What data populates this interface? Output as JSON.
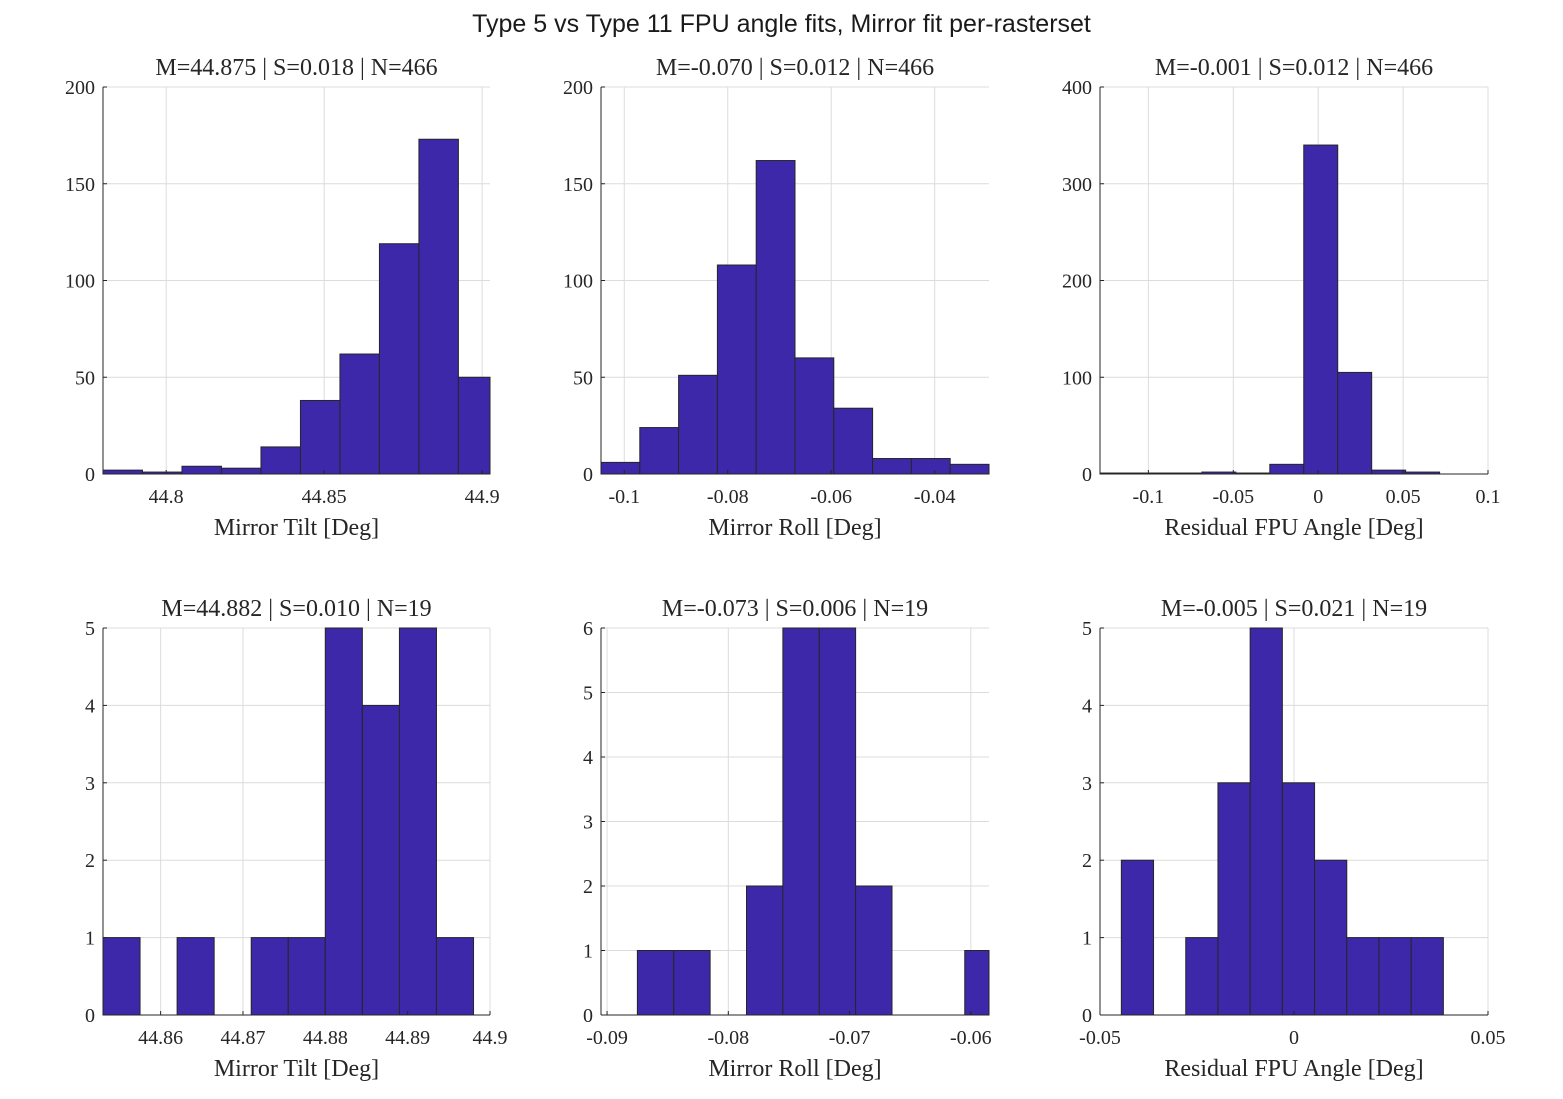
{
  "suptitle": "Type 5 vs Type 11 FPU angle fits, Mirror fit per-rasterset",
  "style": {
    "bar_fill": "#3c28a8",
    "bar_edge": "#262626",
    "grid": "#dcdcdc",
    "axis": "#262626"
  },
  "chart_data": [
    {
      "type": "bar",
      "title": "M=44.875 | S=0.018 | N=466",
      "xlabel": "Mirror Tilt [Deg]",
      "xlim": [
        44.78,
        44.9025
      ],
      "ylim": [
        0,
        200
      ],
      "xticks": [
        44.8,
        44.85,
        44.9
      ],
      "xtick_labels": [
        "44.8",
        "44.85",
        "44.9"
      ],
      "yticks": [
        0,
        50,
        100,
        150,
        200
      ],
      "ytick_labels": [
        "0",
        "50",
        "100",
        "150",
        "200"
      ],
      "bin_edges": [
        44.78,
        44.7925,
        44.805,
        44.8175,
        44.83,
        44.8425,
        44.855,
        44.8675,
        44.88,
        44.8925,
        44.905
      ],
      "values": [
        2,
        1,
        4,
        3,
        14,
        38,
        62,
        119,
        173,
        50
      ],
      "grid": true
    },
    {
      "type": "bar",
      "title": "M=-0.070 | S=0.012 | N=466",
      "xlabel": "Mirror Roll [Deg]",
      "xlim": [
        -0.1045,
        -0.0295
      ],
      "ylim": [
        0,
        200
      ],
      "xticks": [
        -0.1,
        -0.08,
        -0.06,
        -0.04
      ],
      "xtick_labels": [
        "-0.1",
        "-0.08",
        "-0.06",
        "-0.04"
      ],
      "yticks": [
        0,
        50,
        100,
        150,
        200
      ],
      "ytick_labels": [
        "0",
        "50",
        "100",
        "150",
        "200"
      ],
      "bin_edges": [
        -0.1045,
        -0.097,
        -0.0895,
        -0.082,
        -0.0745,
        -0.067,
        -0.0595,
        -0.052,
        -0.0445,
        -0.037,
        -0.0295
      ],
      "values": [
        6,
        24,
        51,
        108,
        162,
        60,
        34,
        8,
        8,
        5
      ],
      "grid": true
    },
    {
      "type": "bar",
      "title": "M=-0.001 | S=0.012 | N=466",
      "xlabel": "Residual FPU Angle [Deg]",
      "xlim": [
        -0.1285,
        0.1
      ],
      "ylim": [
        0,
        400
      ],
      "xticks": [
        -0.1,
        -0.05,
        0,
        0.05,
        0.1
      ],
      "xtick_labels": [
        "-0.1",
        "-0.05",
        "0",
        "0.05",
        "0.1"
      ],
      "yticks": [
        0,
        100,
        200,
        300,
        400
      ],
      "ytick_labels": [
        "0",
        "100",
        "200",
        "300",
        "400"
      ],
      "bin_edges": [
        -0.1285,
        -0.1085,
        -0.0885,
        -0.0685,
        -0.0485,
        -0.0285,
        -0.0085,
        0.0115,
        0.0315,
        0.0515,
        0.0715
      ],
      "values": [
        1,
        1,
        1,
        2,
        1,
        10,
        340,
        105,
        4,
        2
      ],
      "grid": true
    },
    {
      "type": "bar",
      "title": "M=44.882 | S=0.010 | N=19",
      "xlabel": "Mirror Tilt [Deg]",
      "xlim": [
        44.853,
        44.9
      ],
      "ylim": [
        0,
        5
      ],
      "xticks": [
        44.86,
        44.87,
        44.88,
        44.89,
        44.9
      ],
      "xtick_labels": [
        "44.86",
        "44.87",
        "44.88",
        "44.89",
        "44.9"
      ],
      "yticks": [
        0,
        1,
        2,
        3,
        4,
        5
      ],
      "ytick_labels": [
        "0",
        "1",
        "2",
        "3",
        "4",
        "5"
      ],
      "bin_edges": [
        44.853,
        44.8575,
        44.862,
        44.8665,
        44.871,
        44.8755,
        44.88,
        44.8845,
        44.889,
        44.8935
      ],
      "values": [
        1,
        0,
        1,
        0,
        1,
        1,
        5,
        4,
        5,
        1
      ],
      "bin_width": 0.0045,
      "grid": true
    },
    {
      "type": "bar",
      "title": "M=-0.073 | S=0.006 | N=19",
      "xlabel": "Mirror Roll [Deg]",
      "xlim": [
        -0.0905,
        -0.0585
      ],
      "ylim": [
        0,
        6
      ],
      "xticks": [
        -0.09,
        -0.08,
        -0.07,
        -0.06
      ],
      "xtick_labels": [
        "-0.09",
        "-0.08",
        "-0.07",
        "-0.06"
      ],
      "yticks": [
        0,
        1,
        2,
        3,
        4,
        5,
        6
      ],
      "ytick_labels": [
        "0",
        "1",
        "2",
        "3",
        "4",
        "5",
        "6"
      ],
      "bin_edges": [
        -0.0875,
        -0.0845,
        -0.0815,
        -0.0785,
        -0.0755,
        -0.0725,
        -0.0695,
        -0.0665,
        -0.0635,
        -0.0605,
        -0.0575
      ],
      "values": [
        1,
        1,
        0,
        2,
        6,
        6,
        2,
        0,
        0,
        1
      ],
      "grid": true
    },
    {
      "type": "bar",
      "title": "M=-0.005 | S=0.021 | N=19",
      "xlabel": "Residual FPU Angle [Deg]",
      "xlim": [
        -0.05,
        0.05
      ],
      "ylim": [
        0,
        5
      ],
      "xticks": [
        -0.05,
        0,
        0.05
      ],
      "xtick_labels": [
        "-0.05",
        "0",
        "0.05"
      ],
      "yticks": [
        0,
        1,
        2,
        3,
        4,
        5
      ],
      "ytick_labels": [
        "0",
        "1",
        "2",
        "3",
        "4",
        "5"
      ],
      "bin_edges": [
        -0.0445,
        -0.0362,
        -0.0279,
        -0.0196,
        -0.0113,
        -0.003,
        0.0053,
        0.0136,
        0.0219,
        0.0302,
        0.0385
      ],
      "values": [
        2,
        0,
        1,
        3,
        5,
        3,
        2,
        1,
        1,
        1
      ],
      "grid": true
    }
  ]
}
